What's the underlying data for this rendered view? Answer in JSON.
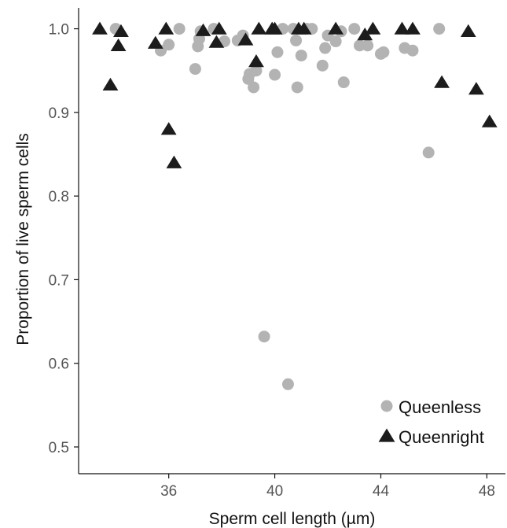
{
  "chart_data": {
    "type": "scatter",
    "xlabel": "Sperm cell length (µm)",
    "ylabel": "Proportion of live sperm cells",
    "xlim": [
      32.6,
      48.7
    ],
    "ylim": [
      0.468,
      1.025
    ],
    "xticks": [
      36,
      40,
      44,
      48
    ],
    "yticks": [
      0.5,
      0.6,
      0.7,
      0.8,
      0.9,
      1.0
    ],
    "ytick_labels": [
      "0.5",
      "0.6",
      "0.7",
      "0.8",
      "0.9",
      "1.0"
    ],
    "grid": false,
    "legend_position": "bottom-right",
    "series": [
      {
        "name": "Queenless",
        "marker": "circle",
        "color": "#b3b3b3",
        "points": [
          [
            34.0,
            1.0
          ],
          [
            35.7,
            0.974
          ],
          [
            36.0,
            0.981
          ],
          [
            36.4,
            1.0
          ],
          [
            37.0,
            0.952
          ],
          [
            37.1,
            0.979
          ],
          [
            37.15,
            0.988
          ],
          [
            37.2,
            0.997
          ],
          [
            37.7,
            1.0
          ],
          [
            38.1,
            0.985
          ],
          [
            38.6,
            0.986
          ],
          [
            38.8,
            0.992
          ],
          [
            39.0,
            0.94
          ],
          [
            39.05,
            0.946
          ],
          [
            39.2,
            0.93
          ],
          [
            39.3,
            0.95
          ],
          [
            39.6,
            0.632
          ],
          [
            40.0,
            0.945
          ],
          [
            40.1,
            0.972
          ],
          [
            40.3,
            1.0
          ],
          [
            40.5,
            0.575
          ],
          [
            40.7,
            1.0
          ],
          [
            40.8,
            0.986
          ],
          [
            40.85,
            0.93
          ],
          [
            41.0,
            0.968
          ],
          [
            41.2,
            1.0
          ],
          [
            41.4,
            1.0
          ],
          [
            41.8,
            0.956
          ],
          [
            41.9,
            0.977
          ],
          [
            42.0,
            0.992
          ],
          [
            42.3,
            0.985
          ],
          [
            42.5,
            0.997
          ],
          [
            42.6,
            0.936
          ],
          [
            43.0,
            1.0
          ],
          [
            43.2,
            0.98
          ],
          [
            43.5,
            0.98
          ],
          [
            44.0,
            0.97
          ],
          [
            44.1,
            0.972
          ],
          [
            44.9,
            0.977
          ],
          [
            45.2,
            0.974
          ],
          [
            45.8,
            0.852
          ],
          [
            46.2,
            1.0
          ]
        ]
      },
      {
        "name": "Queenright",
        "marker": "triangle",
        "color": "#1c1c1c",
        "points": [
          [
            33.4,
            1.0
          ],
          [
            33.8,
            0.933
          ],
          [
            34.1,
            0.98
          ],
          [
            34.2,
            0.997
          ],
          [
            35.5,
            0.983
          ],
          [
            35.9,
            1.0
          ],
          [
            36.0,
            0.88
          ],
          [
            36.2,
            0.84
          ],
          [
            37.3,
            0.998
          ],
          [
            37.8,
            0.984
          ],
          [
            37.9,
            1.0
          ],
          [
            38.9,
            0.987
          ],
          [
            39.3,
            0.961
          ],
          [
            39.4,
            1.0
          ],
          [
            39.9,
            1.0
          ],
          [
            40.0,
            1.0
          ],
          [
            40.9,
            1.0
          ],
          [
            41.1,
            1.0
          ],
          [
            42.3,
            1.0
          ],
          [
            43.4,
            0.993
          ],
          [
            43.7,
            1.0
          ],
          [
            44.8,
            1.0
          ],
          [
            45.2,
            1.0
          ],
          [
            46.3,
            0.936
          ],
          [
            47.3,
            0.997
          ],
          [
            47.6,
            0.928
          ],
          [
            48.1,
            0.889
          ]
        ]
      }
    ]
  }
}
